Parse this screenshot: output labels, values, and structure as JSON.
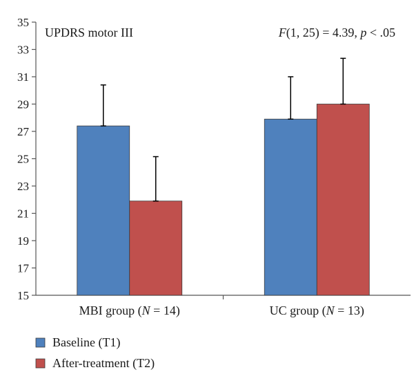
{
  "chart_data": {
    "type": "bar",
    "title": "",
    "xlabel": "",
    "ylabel": "",
    "ylim": [
      15,
      35
    ],
    "yticks": [
      15,
      17,
      19,
      21,
      23,
      25,
      27,
      29,
      31,
      33,
      35
    ],
    "grid": false,
    "legend_position": "bottom-left",
    "categories": [
      {
        "prefix": "MBI group (",
        "italic": "N",
        "suffix": " = 14)"
      },
      {
        "prefix": "UC group (",
        "italic": "N",
        "suffix": " = 13)"
      }
    ],
    "series": [
      {
        "name": "Baseline (T1)",
        "color": "#4f81bd",
        "values": [
          27.4,
          27.9
        ],
        "errors": [
          3.0,
          3.1
        ]
      },
      {
        "name": "After-treatment (T2)",
        "color": "#c0504d",
        "values": [
          21.9,
          29.0
        ],
        "errors": [
          3.25,
          3.35
        ]
      }
    ],
    "annotations": {
      "measure": "UPDRS motor III",
      "stat_F": "F",
      "stat_df": "(1, 25) = 4.39, ",
      "stat_p": "p",
      "stat_rest": " < .05"
    }
  }
}
